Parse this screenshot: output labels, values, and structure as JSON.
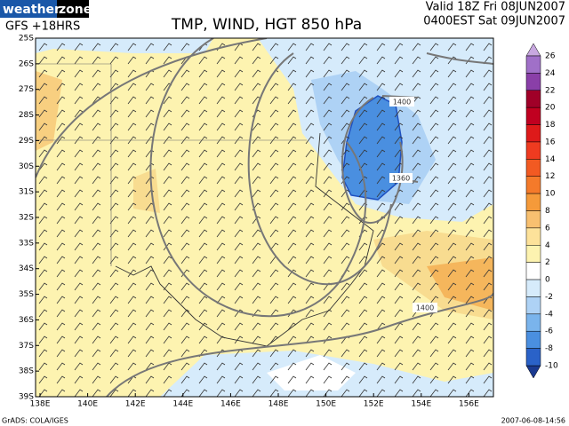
{
  "header": {
    "logo_left": "weather",
    "logo_right": "zone",
    "model": "GFS +18HRS",
    "title": "TMP, WIND, HGT 850 hPa",
    "valid_line1": "Valid 18Z Fri 08JUN2007",
    "valid_line2": "0400EST Sat 09JUN2007"
  },
  "latitudes": [
    "25S",
    "26S",
    "27S",
    "28S",
    "29S",
    "30S",
    "31S",
    "32S",
    "33S",
    "34S",
    "35S",
    "36S",
    "37S",
    "38S",
    "39S"
  ],
  "longitudes": [
    "138E",
    "140E",
    "142E",
    "144E",
    "146E",
    "148E",
    "150E",
    "152E",
    "154E",
    "156E"
  ],
  "contour_labels": [
    "1400",
    "1360",
    "1400"
  ],
  "colorbar": {
    "labels": [
      26,
      24,
      22,
      20,
      18,
      16,
      14,
      12,
      10,
      8,
      6,
      4,
      2,
      0,
      -2,
      -4,
      -6,
      -8,
      -10
    ]
  },
  "footer": {
    "left": "GrADS: COLA/IGES",
    "right": "2007-06-08-14:56"
  }
}
